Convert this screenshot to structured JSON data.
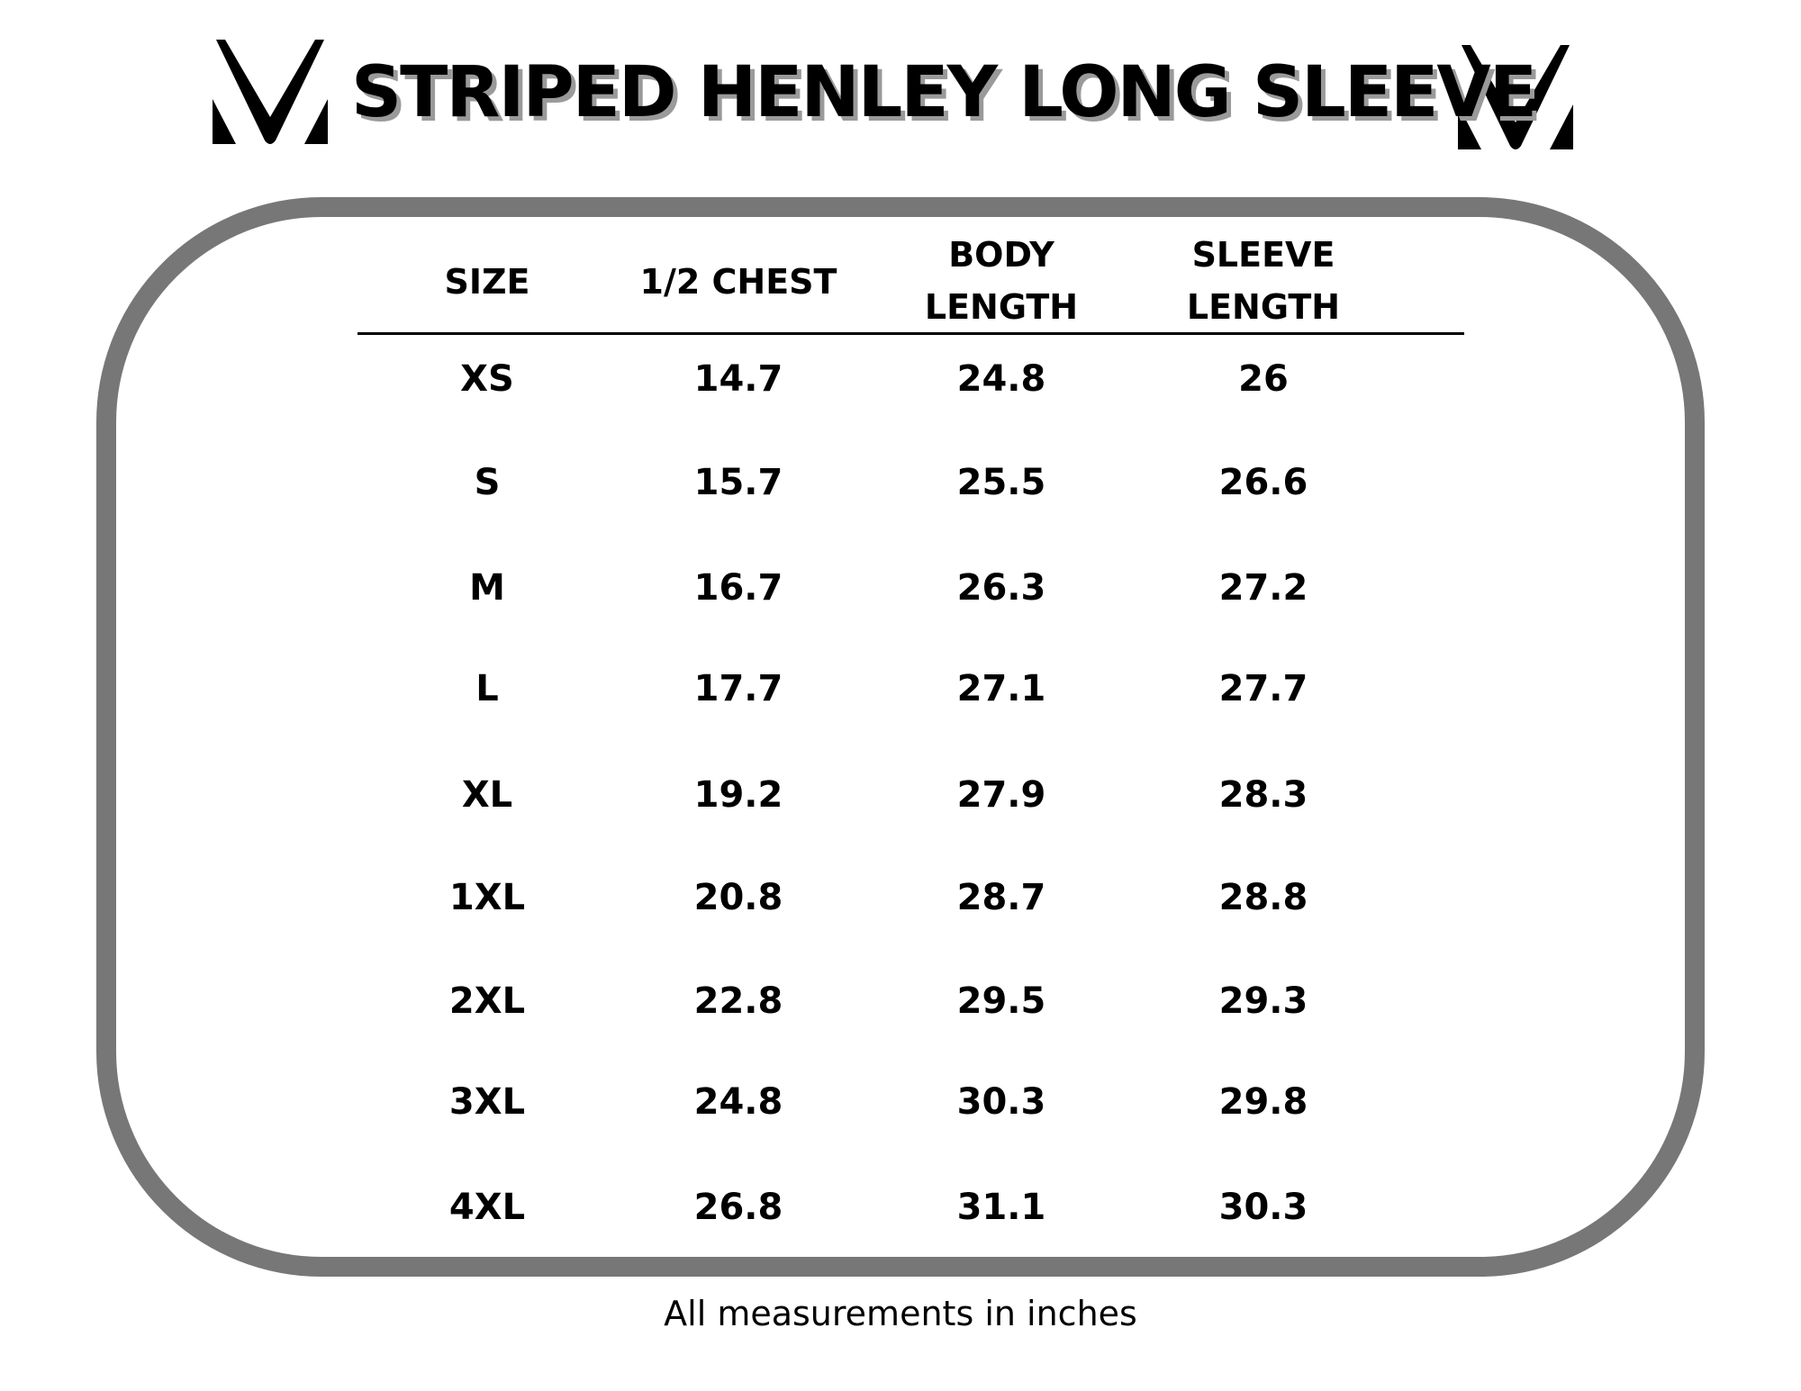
{
  "title": "STRIPED HENLEY LONG SLEEVE",
  "logo_icon": "v-monogram-logo",
  "border_color": "#777777",
  "table": {
    "headers": [
      "SIZE",
      "1/2 CHEST",
      "BODY\nLENGTH",
      "SLEEVE\nLENGTH"
    ],
    "header_lines": [
      [
        "SIZE"
      ],
      [
        "1/2 CHEST"
      ],
      [
        "BODY",
        "LENGTH"
      ],
      [
        "SLEEVE",
        "LENGTH"
      ]
    ],
    "rows": [
      [
        "XS",
        "14.7",
        "24.8",
        "26"
      ],
      [
        "S",
        "15.7",
        "25.5",
        "26.6"
      ],
      [
        "M",
        "16.7",
        "26.3",
        "27.2"
      ],
      [
        "L",
        "17.7",
        "27.1",
        "27.7"
      ],
      [
        "XL",
        "19.2",
        "27.9",
        "28.3"
      ],
      [
        "1XL",
        "20.8",
        "28.7",
        "28.8"
      ],
      [
        "2XL",
        "22.8",
        "29.5",
        "29.3"
      ],
      [
        "3XL",
        "24.8",
        "30.3",
        "29.8"
      ],
      [
        "4XL",
        "26.8",
        "31.1",
        "30.3"
      ]
    ]
  },
  "footer": "All measurements in inches"
}
